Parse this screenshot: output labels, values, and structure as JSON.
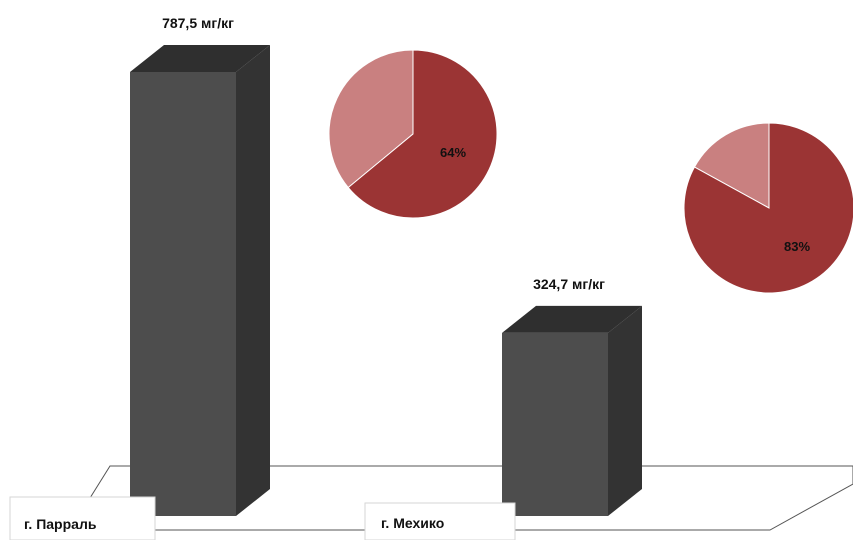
{
  "chart_data": {
    "type": "bar",
    "categories": [
      "г. Парраль",
      "г. Мехико"
    ],
    "values": [
      787.5,
      324.7
    ],
    "value_labels": [
      "787,5 мг/кг",
      "324,7 мг/кг"
    ],
    "ylim": [
      0,
      787.5
    ],
    "grid": false,
    "pies": [
      {
        "category": "г. Парраль",
        "share": 64,
        "label": "64%"
      },
      {
        "category": "г. Мехико",
        "share": 83,
        "label": "83%"
      }
    ],
    "colors": {
      "bar_front": "#4d4d4d",
      "bar_top": "#2f2f2f",
      "bar_side": "#333333",
      "pie_main": "#9b3434",
      "pie_rest": "#c98080"
    }
  }
}
